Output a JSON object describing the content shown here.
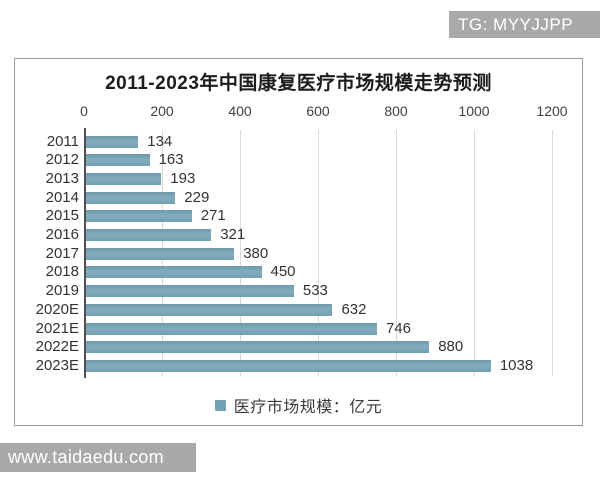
{
  "watermarks": {
    "top_right": "TG: MYYJJPP",
    "bottom_left": "www.taidaedu.com"
  },
  "chart_data": {
    "type": "bar",
    "orientation": "horizontal",
    "title": "2011-2023年中国康复医疗市场规模走势预测",
    "categories": [
      "2011",
      "2012",
      "2013",
      "2014",
      "2015",
      "2016",
      "2017",
      "2018",
      "2019",
      "2020E",
      "2021E",
      "2022E",
      "2023E"
    ],
    "values": [
      134,
      163,
      193,
      229,
      271,
      321,
      380,
      450,
      533,
      632,
      746,
      880,
      1038
    ],
    "legend": "医疗市场规模：亿元",
    "legend_position": "bottom",
    "x_ticks": [
      0,
      200,
      400,
      600,
      800,
      1000,
      1200
    ],
    "xlim": [
      0,
      1200
    ],
    "grid": true,
    "axis_side": "top",
    "bar_color": "#74a2b4",
    "grid_color": "#d9d9d9",
    "axis_color": "#4f4f4f",
    "watermark_bg_color": "#a9a9a9"
  }
}
